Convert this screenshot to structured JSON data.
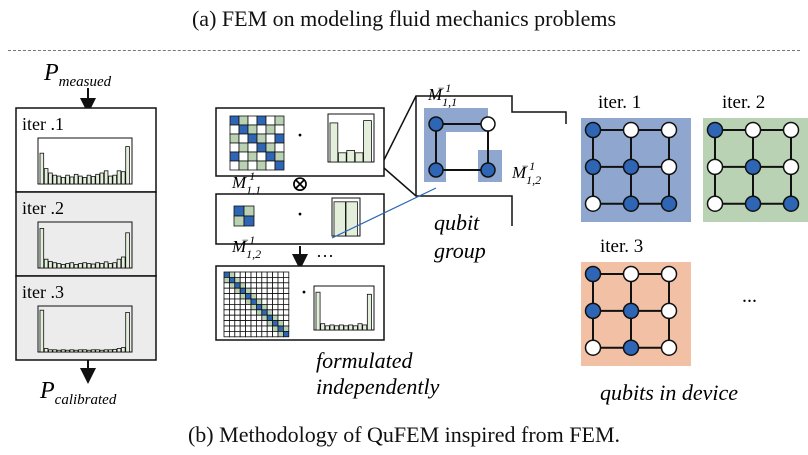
{
  "top_caption": "(a) FEM on modeling fluid mechanics problems",
  "bottom_caption": "(b) Methodology of QuFEM inspired from FEM.",
  "left_panel": {
    "p_measured": {
      "base": "P",
      "sub": "measued"
    },
    "p_calibrated": {
      "base": "P",
      "sub": "calibrated"
    },
    "iterations": [
      "iter .1",
      "iter .2",
      "iter .3"
    ]
  },
  "middle_panel": {
    "dot": "·",
    "otimes": "⊗",
    "m11": {
      "base": "M",
      "sub": "1,1",
      "sup": "−1"
    },
    "m12": {
      "base": "M",
      "sub": "1,2",
      "sup": "−1"
    },
    "ellipsis": "···",
    "formulated_line1": "formulated",
    "formulated_line2": "independently"
  },
  "qubit_group_label_line1": "qubit",
  "qubit_group_label_line2": "group",
  "device_panel": {
    "iter_labels": [
      "iter. 1",
      "iter. 2",
      "iter. 3"
    ],
    "more": "...",
    "label": "qubits in device"
  },
  "colors": {
    "blue_fill": "#2e66b5",
    "blue_group": "#8fa7cf",
    "green_group": "#b9d2b3",
    "orange_group": "#f2c1a5",
    "gray_panel": "#ececec",
    "green_bar": "#e3efdb"
  }
}
